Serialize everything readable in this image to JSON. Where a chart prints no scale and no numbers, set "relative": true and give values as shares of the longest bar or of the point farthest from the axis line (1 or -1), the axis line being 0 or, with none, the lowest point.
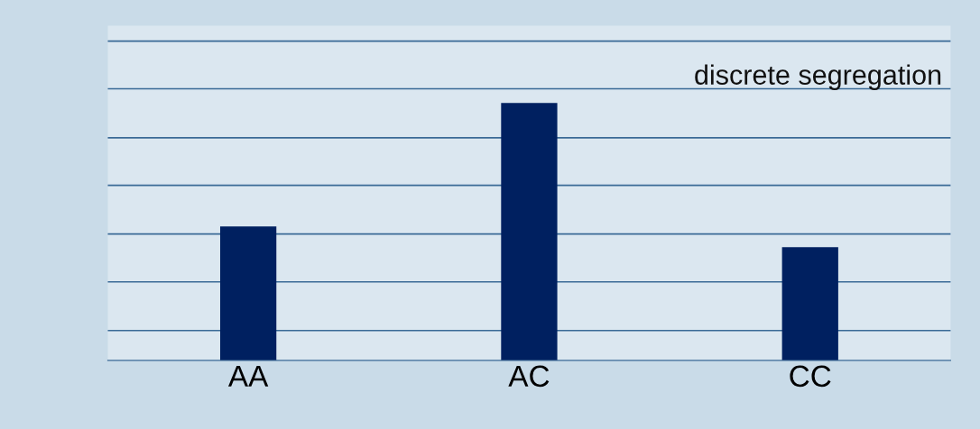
{
  "chart_data": {
    "type": "bar",
    "relative": true,
    "categories": [
      "AA",
      "AC",
      "CC"
    ],
    "values": [
      0.52,
      1,
      0.44
    ],
    "color": "#002060",
    "ref_lines": [
      {
        "axis": "y",
        "value": 0.116,
        "color": "#3a6a96"
      },
      {
        "axis": "y",
        "value": 0.305,
        "color": "#3a6a96"
      },
      {
        "axis": "y",
        "value": 0.491,
        "color": "#3a6a96"
      },
      {
        "axis": "y",
        "value": 0.68,
        "color": "#3a6a96"
      },
      {
        "axis": "y",
        "value": 0.865,
        "color": "#3a6a96"
      },
      {
        "axis": "y",
        "value": 1.055,
        "color": "#3a6a96"
      },
      {
        "axis": "y",
        "value": 1.24,
        "color": "#3a6a96"
      }
    ],
    "annotations": [
      "discrete segregation"
    ]
  }
}
